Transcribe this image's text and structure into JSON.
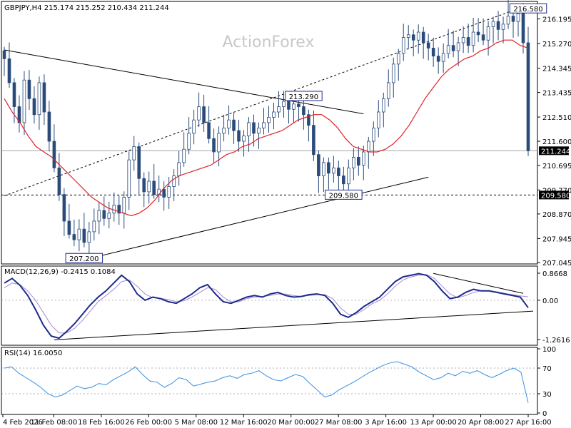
{
  "header": {
    "symbol_info": "GBPJPY,H4  215.174 215.252 210.434 211.244",
    "watermark": "ActionForex"
  },
  "chart_data": {
    "type": "candlestick",
    "ohlc_text": "215.174 215.252 210.434 211.244",
    "price_axis": {
      "ticks": [
        "216.195",
        "215.270",
        "214.345",
        "213.435",
        "212.510",
        "211.600",
        "210.695",
        "209.770",
        "208.870",
        "207.945",
        "207.045"
      ],
      "ylim": [
        207.045,
        216.8
      ],
      "current_price": "211.244",
      "support_level": "209.580"
    },
    "annotations": [
      {
        "label": "216.580",
        "value": 216.58,
        "bar": 105
      },
      {
        "label": "213.290",
        "value": 213.29,
        "bar": 60
      },
      {
        "label": "209.580",
        "value": 209.58,
        "bar": 68
      },
      {
        "label": "207.200",
        "value": 207.2,
        "bar": 16
      }
    ],
    "trendlines": [
      {
        "name": "descending",
        "from": [
          0,
          215.03
        ],
        "to": [
          72,
          212.63
        ]
      },
      {
        "name": "channel-upper",
        "from": [
          0,
          209.55
        ],
        "to": [
          104,
          216.65
        ]
      },
      {
        "name": "channel-lower",
        "from": [
          16,
          207.15
        ],
        "to": [
          85,
          210.25
        ]
      }
    ],
    "close": [
      214.7,
      213.8,
      212.9,
      212.3,
      213.9,
      213.2,
      212.6,
      213.8,
      212.7,
      211.6,
      210.6,
      209.6,
      208.6,
      208.1,
      207.9,
      208.3,
      207.8,
      208.2,
      208.6,
      209.0,
      208.7,
      208.9,
      209.2,
      208.9,
      209.5,
      210.9,
      211.4,
      210.2,
      209.7,
      210.1,
      209.6,
      209.8,
      209.5,
      209.9,
      210.3,
      210.8,
      211.3,
      211.9,
      212.4,
      212.9,
      212.3,
      211.7,
      211.2,
      211.9,
      212.1,
      212.4,
      212.0,
      211.6,
      211.8,
      212.3,
      211.9,
      212.1,
      212.3,
      212.5,
      212.7,
      212.9,
      213.1,
      212.8,
      213.0,
      212.9,
      212.6,
      212.2,
      211.1,
      210.3,
      210.8,
      210.4,
      210.6,
      210.3,
      210.0,
      210.6,
      211.0,
      210.7,
      211.2,
      211.6,
      212.1,
      212.7,
      213.2,
      213.8,
      214.5,
      214.9,
      215.5,
      215.6,
      215.4,
      215.7,
      215.3,
      215.1,
      214.8,
      214.6,
      214.9,
      215.2,
      215.0,
      215.3,
      215.5,
      215.2,
      215.7,
      215.6,
      215.4,
      215.9,
      216.1,
      215.8,
      216.0,
      216.3,
      216.1,
      216.4,
      215.3,
      211.244
    ],
    "ma": [
      213.2,
      212.7,
      212.3,
      211.8,
      211.4,
      211.2,
      211.0,
      210.7,
      210.4,
      210.1,
      209.8,
      209.5,
      209.3,
      209.1,
      209.0,
      208.9,
      208.8,
      208.9,
      209.1,
      209.4,
      209.8,
      210.1,
      210.3,
      210.4,
      210.5,
      210.6,
      210.7,
      210.9,
      211.1,
      211.2,
      211.4,
      211.5,
      211.7,
      211.8,
      211.9,
      212.0,
      212.2,
      212.4,
      212.5,
      212.6,
      212.6,
      212.4,
      212.1,
      211.7,
      211.4,
      211.3,
      211.2,
      211.2,
      211.3,
      211.5,
      211.8,
      212.2,
      212.7,
      213.2,
      213.6,
      214.0,
      214.3,
      214.5,
      214.7,
      214.8,
      215.0,
      215.1,
      215.3,
      215.4,
      215.4,
      215.2,
      215.1
    ],
    "ma_label": "",
    "macd": {
      "label": "MACD(12,26,9) -0.2415 0.1084",
      "ticks": [
        "0.8668",
        "0.00",
        "-1.2616"
      ],
      "ylim": [
        -1.4,
        1.05
      ],
      "macd_line": [
        0.55,
        0.7,
        0.48,
        0.15,
        -0.3,
        -0.8,
        -1.15,
        -1.22,
        -1.0,
        -0.75,
        -0.45,
        -0.15,
        0.1,
        0.3,
        0.55,
        0.8,
        0.6,
        0.2,
        0.0,
        0.1,
        0.05,
        -0.05,
        -0.1,
        0.05,
        0.2,
        0.4,
        0.5,
        0.2,
        -0.05,
        -0.1,
        0.0,
        0.1,
        0.15,
        0.1,
        0.2,
        0.25,
        0.15,
        0.1,
        0.12,
        0.18,
        0.2,
        0.15,
        -0.1,
        -0.45,
        -0.55,
        -0.4,
        -0.2,
        -0.05,
        0.1,
        0.35,
        0.6,
        0.75,
        0.8,
        0.85,
        0.8,
        0.6,
        0.3,
        0.05,
        0.1,
        0.25,
        0.35,
        0.3,
        0.3,
        0.25,
        0.2,
        0.15,
        0.1,
        -0.24
      ],
      "signal_line": [
        0.4,
        0.55,
        0.5,
        0.3,
        0.0,
        -0.4,
        -0.8,
        -1.05,
        -1.05,
        -0.9,
        -0.65,
        -0.35,
        -0.05,
        0.15,
        0.35,
        0.6,
        0.65,
        0.45,
        0.2,
        0.08,
        0.06,
        0.02,
        -0.05,
        -0.02,
        0.1,
        0.25,
        0.4,
        0.35,
        0.1,
        -0.05,
        -0.05,
        0.05,
        0.1,
        0.12,
        0.15,
        0.2,
        0.2,
        0.15,
        0.12,
        0.15,
        0.18,
        0.18,
        0.05,
        -0.25,
        -0.45,
        -0.45,
        -0.3,
        -0.12,
        0.0,
        0.2,
        0.45,
        0.65,
        0.75,
        0.8,
        0.82,
        0.7,
        0.45,
        0.2,
        0.08,
        0.15,
        0.25,
        0.3,
        0.3,
        0.27,
        0.22,
        0.18,
        0.14,
        0.11
      ],
      "trendlines": [
        {
          "from": [
            86,
            0.86
          ],
          "to": [
            104,
            0.22
          ]
        },
        {
          "from": [
            10,
            -1.27
          ],
          "to": [
            106,
            -0.35
          ]
        }
      ]
    },
    "rsi": {
      "label": "RSI(14) 16.0050",
      "ticks": [
        "100",
        "70",
        "30",
        "0"
      ],
      "ylim": [
        0,
        100
      ],
      "values": [
        70,
        72,
        62,
        55,
        48,
        40,
        30,
        25,
        28,
        35,
        42,
        38,
        40,
        46,
        44,
        52,
        58,
        64,
        72,
        60,
        50,
        48,
        40,
        46,
        55,
        52,
        42,
        45,
        48,
        50,
        55,
        58,
        54,
        60,
        62,
        66,
        58,
        52,
        50,
        55,
        60,
        57,
        46,
        36,
        25,
        28,
        36,
        42,
        48,
        55,
        62,
        68,
        74,
        78,
        80,
        76,
        72,
        64,
        58,
        52,
        55,
        62,
        58,
        65,
        62,
        66,
        60,
        55,
        60,
        66,
        70,
        64,
        16
      ]
    },
    "x_axis": {
      "ticks": [
        "4 Feb 2026",
        "11 Feb 08:00",
        "18 Feb 16:00",
        "26 Feb 00:00",
        "5 Mar 08:00",
        "12 Mar 16:00",
        "20 Mar 00:00",
        "27 Mar 08:00",
        "3 Apr 16:00",
        "13 Apr 00:00",
        "20 Apr 08:00",
        "27 Apr 16:00"
      ]
    },
    "colors": {
      "bull_candle": "#1f4e9c",
      "bear_candle": "#2a4a7a",
      "ma": "#e0222a",
      "macd_line": "#1c2a8c",
      "signal_line": "#a88bd0",
      "rsi_line": "#3a8ee0",
      "trend": "#000000",
      "label_border": "#1c2a8c"
    }
  }
}
